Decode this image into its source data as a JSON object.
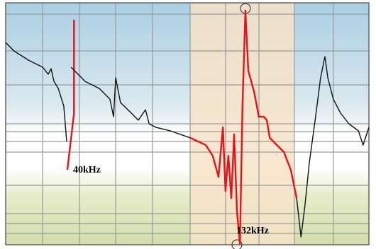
{
  "chart_data": {
    "type": "line",
    "xlim": [
      0,
      100
    ],
    "ylim": [
      0,
      100
    ],
    "lines": [
      {
        "color": "#111111",
        "x": [
          0,
          2.3,
          6.3,
          10.2,
          11.7,
          12.5,
          13.3,
          14.5,
          16.0,
          16.8
        ],
        "y": [
          83.6,
          80.1,
          76.3,
          73.4,
          70.5,
          72.8,
          67.5,
          64.6,
          57.3,
          42.7
        ]
      },
      {
        "color": "#e8121a",
        "x": [
          18.8,
          18.8,
          17.0
        ],
        "y": [
          93.0,
          54.4,
          31.0
        ]
      },
      {
        "color": "#111111",
        "x": [
          18.0,
          21.9,
          25.8,
          28.7,
          29.7,
          30.3,
          31.6,
          34.6,
          36.5,
          38.5,
          39.5,
          41.4,
          45.3,
          50.8
        ],
        "y": [
          73.4,
          67.5,
          64.6,
          60.2,
          52.9,
          69.0,
          58.8,
          54.4,
          51.5,
          55.8,
          50.0,
          48.5,
          47.1,
          44.2
        ]
      },
      {
        "color": "#e8121a",
        "x": [
          50.8,
          55.1,
          57.0,
          58.6,
          59.8,
          60.5,
          61.3,
          62.1,
          62.9,
          63.7,
          64.5,
          65.2,
          66.0,
          66.8,
          68.4,
          69.7,
          71.1,
          71.9,
          72.7,
          76.6,
          78.5,
          80.1
        ],
        "y": [
          44.2,
          41.2,
          36.8,
          28.1,
          48.5,
          22.2,
          36.8,
          19.3,
          45.6,
          13.5,
          0.3,
          57.3,
          96.8,
          71.9,
          63.2,
          52.9,
          52.9,
          51.5,
          44.2,
          38.3,
          31.0,
          19.3
        ]
      },
      {
        "color": "#111111",
        "x": [
          80.1,
          81.3,
          82.4,
          83.6,
          85.2,
          86.7,
          87.9,
          88.7,
          90.2,
          92.2,
          94.5,
          97.1,
          98.4,
          100
        ],
        "y": [
          19.3,
          3.2,
          16.4,
          33.9,
          51.5,
          69.0,
          77.8,
          69.0,
          60.2,
          54.4,
          50.0,
          47.1,
          41.2,
          48.5
        ]
      }
    ],
    "annotations": [
      "40kHz",
      "132kHz"
    ]
  }
}
